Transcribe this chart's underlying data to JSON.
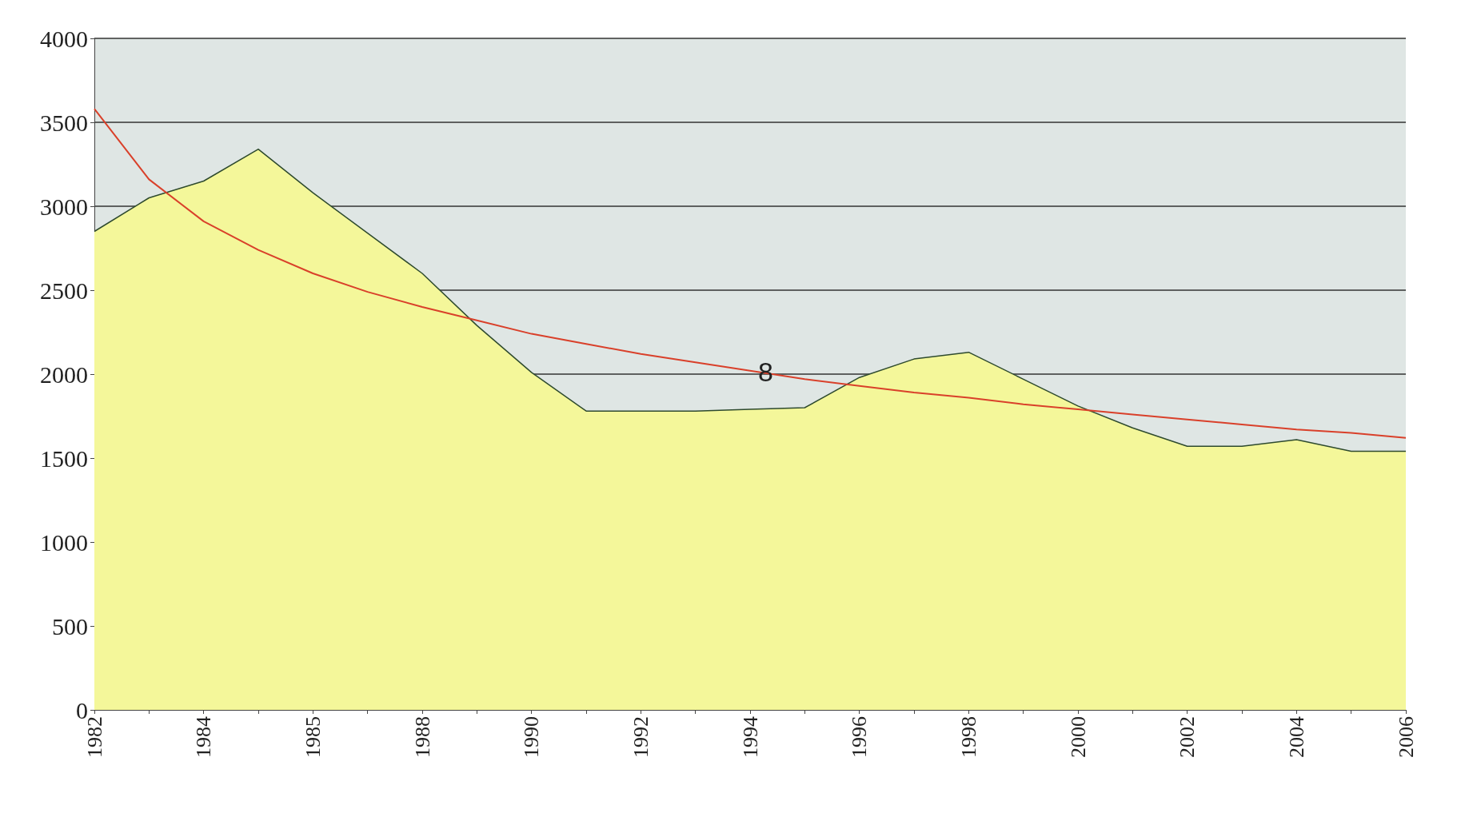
{
  "chart_data": {
    "type": "area",
    "categories": [
      "1982",
      null,
      "1984",
      null,
      "1985",
      null,
      "1988",
      null,
      "1990",
      null,
      "1992",
      null,
      "1994",
      null,
      "1996",
      null,
      "1998",
      null,
      "2000",
      null,
      "2002",
      null,
      "2004",
      null,
      "2006"
    ],
    "series": [
      {
        "type": "area",
        "color": "#f4f79a",
        "values": [
          2850,
          3050,
          3150,
          3340,
          3080,
          2840,
          2600,
          2290,
          2010,
          1780,
          1780,
          1780,
          1790,
          1800,
          1980,
          2090,
          2130,
          1970,
          1810,
          1680,
          1570,
          1570,
          1610,
          1540,
          1540
        ]
      },
      {
        "type": "line",
        "color": "#d9402a",
        "values": [
          3580,
          3160,
          2910,
          2740,
          2600,
          2490,
          2400,
          2320,
          2240,
          2180,
          2120,
          2070,
          2020,
          1970,
          1930,
          1890,
          1860,
          1820,
          1790,
          1760,
          1730,
          1700,
          1670,
          1650,
          1620
        ]
      }
    ],
    "ylim": [
      0,
      4000
    ],
    "yticks": [
      0,
      500,
      1000,
      1500,
      2000,
      2500,
      3000,
      3500,
      4000
    ],
    "grid": "y",
    "marker": "none",
    "annotations": [
      "8"
    ]
  }
}
